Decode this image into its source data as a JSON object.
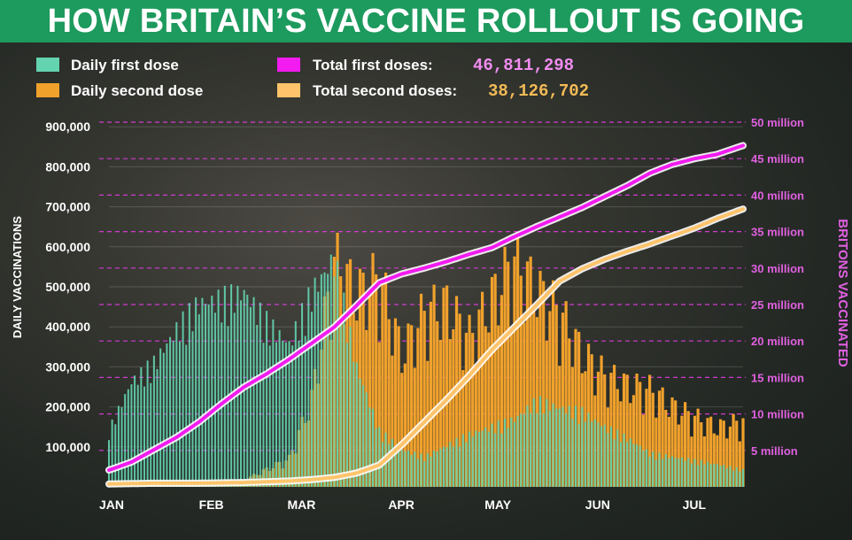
{
  "title": "HOW BRITAIN’S VACCINE ROLLOUT IS GOING",
  "legend": {
    "daily_first": "Daily first dose",
    "daily_second": "Daily second dose",
    "total_first": "Total first doses:",
    "total_second": "Total second doses:",
    "total_first_value": "46,811,298",
    "total_second_value": "38,126,702"
  },
  "colors": {
    "daily_first": "#63d3b0",
    "daily_second": "#f0a12c",
    "total_first": "#f21bf0",
    "total_second": "#ffc46b",
    "total_first_value_text": "#f08cf0",
    "total_second_value_text": "#f3bb56",
    "right_axis": "#e060e0",
    "title_bg": "#1d9a5d"
  },
  "chart_data": {
    "type": "bar",
    "ylabel_left": "DAILY VACCINATIONS",
    "ylabel_right": "BRITONS VACCINATED",
    "left_ticks": [
      {
        "value": 100000,
        "label": "100,000"
      },
      {
        "value": 200000,
        "label": "200,000"
      },
      {
        "value": 300000,
        "label": "300,000"
      },
      {
        "value": 400000,
        "label": "400,000"
      },
      {
        "value": 500000,
        "label": "500,000"
      },
      {
        "value": 600000,
        "label": "600,000"
      },
      {
        "value": 700000,
        "label": "700,000"
      },
      {
        "value": 800000,
        "label": "800,000"
      },
      {
        "value": 900000,
        "label": "900,000"
      }
    ],
    "right_ticks": [
      {
        "value": 5,
        "label": "5 million"
      },
      {
        "value": 10,
        "label": "10 million"
      },
      {
        "value": 15,
        "label": "15 million"
      },
      {
        "value": 20,
        "label": "20 million"
      },
      {
        "value": 25,
        "label": "25 million"
      },
      {
        "value": 30,
        "label": "30 million"
      },
      {
        "value": 35,
        "label": "35 million"
      },
      {
        "value": 40,
        "label": "40 million"
      },
      {
        "value": 45,
        "label": "45 million"
      },
      {
        "value": 50,
        "label": "50 million"
      }
    ],
    "ylim_left": [
      0,
      900000
    ],
    "ylim_right": [
      0,
      50
    ],
    "months": [
      {
        "day": 0,
        "label": "JAN"
      },
      {
        "day": 31,
        "label": "FEB"
      },
      {
        "day": 59,
        "label": "MAR"
      },
      {
        "day": 90,
        "label": "APR"
      },
      {
        "day": 120,
        "label": "MAY"
      },
      {
        "day": 151,
        "label": "JUN"
      },
      {
        "day": 181,
        "label": "JUL"
      }
    ],
    "day_count": 198,
    "series": [
      {
        "name": "Daily first dose",
        "kind": "bar",
        "sample_days": [
          0,
          7,
          14,
          21,
          28,
          35,
          42,
          49,
          56,
          63,
          70,
          77,
          84,
          91,
          98,
          105,
          112,
          119,
          126,
          133,
          140,
          147,
          154,
          161,
          168,
          175,
          182,
          189,
          197
        ],
        "values": [
          150000,
          280000,
          330000,
          420000,
          490000,
          500000,
          520000,
          440000,
          380000,
          520000,
          610000,
          320000,
          150000,
          100000,
          80000,
          110000,
          140000,
          160000,
          180000,
          230000,
          210000,
          200000,
          160000,
          130000,
          90000,
          80000,
          70000,
          60000,
          45000
        ]
      },
      {
        "name": "Daily second dose",
        "kind": "bar",
        "sample_days": [
          0,
          14,
          28,
          42,
          56,
          63,
          70,
          77,
          84,
          91,
          98,
          105,
          112,
          119,
          126,
          133,
          140,
          147,
          154,
          161,
          168,
          175,
          182,
          189,
          197
        ],
        "values": [
          10000,
          12000,
          15000,
          20000,
          80000,
          250000,
          650000,
          550000,
          600000,
          380000,
          500000,
          520000,
          430000,
          540000,
          650000,
          560000,
          500000,
          380000,
          320000,
          290000,
          280000,
          230000,
          200000,
          170000,
          190000
        ]
      },
      {
        "name": "Total first doses",
        "kind": "line",
        "axis": "right",
        "sample_days": [
          0,
          7,
          14,
          21,
          28,
          35,
          42,
          49,
          56,
          63,
          70,
          77,
          84,
          91,
          98,
          105,
          112,
          119,
          126,
          133,
          140,
          147,
          154,
          161,
          168,
          175,
          182,
          189,
          197
        ],
        "values": [
          2.3,
          3.4,
          5.1,
          6.8,
          8.9,
          11.4,
          13.7,
          15.5,
          17.5,
          19.7,
          21.9,
          24.9,
          28.0,
          29.2,
          30.0,
          30.9,
          31.9,
          32.8,
          34.3,
          35.7,
          37.0,
          38.3,
          39.8,
          41.3,
          43.0,
          44.2,
          45.0,
          45.6,
          46.8
        ]
      },
      {
        "name": "Total second doses",
        "kind": "line",
        "axis": "right",
        "sample_days": [
          0,
          14,
          28,
          42,
          56,
          63,
          70,
          77,
          84,
          91,
          98,
          105,
          112,
          119,
          126,
          133,
          140,
          147,
          154,
          161,
          168,
          175,
          182,
          189,
          197
        ],
        "values": [
          0.4,
          0.5,
          0.5,
          0.6,
          0.8,
          1.0,
          1.3,
          1.9,
          3.0,
          5.8,
          8.9,
          12.0,
          15.3,
          18.8,
          21.9,
          25.0,
          28.2,
          29.9,
          31.2,
          32.3,
          33.3,
          34.4,
          35.5,
          36.8,
          38.1
        ]
      }
    ]
  }
}
